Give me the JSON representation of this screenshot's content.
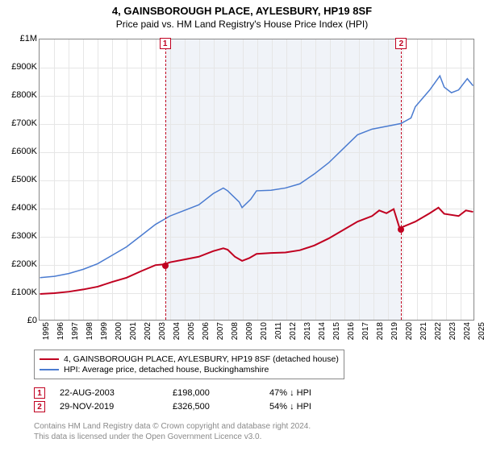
{
  "titles": {
    "line1": "4, GAINSBOROUGH PLACE, AYLESBURY, HP19 8SF",
    "line2": "Price paid vs. HM Land Registry's House Price Index (HPI)"
  },
  "chart": {
    "type": "line",
    "x": {
      "min": 1995,
      "max": 2025,
      "ticks": [
        1995,
        1996,
        1997,
        1998,
        1999,
        2000,
        2001,
        2002,
        2003,
        2004,
        2005,
        2006,
        2007,
        2008,
        2009,
        2010,
        2011,
        2012,
        2013,
        2014,
        2015,
        2016,
        2017,
        2018,
        2019,
        2020,
        2021,
        2022,
        2023,
        2024,
        2025
      ]
    },
    "y": {
      "min": 0,
      "max": 1000000,
      "ticks": [
        0,
        100000,
        200000,
        300000,
        400000,
        500000,
        600000,
        700000,
        800000,
        900000,
        1000000
      ],
      "tick_labels": [
        "£0",
        "£100K",
        "£200K",
        "£300K",
        "£400K",
        "£500K",
        "£600K",
        "£700K",
        "£800K",
        "£900K",
        "£1M"
      ]
    },
    "grid_color": "#e6e6e6",
    "band": {
      "start": 2003.65,
      "end": 2019.91,
      "fill": "#e8ecf4"
    },
    "series": [
      {
        "name": "price_paid",
        "color": "#c00020",
        "width": 2,
        "label": "4, GAINSBOROUGH PLACE, AYLESBURY, HP19 8SF (detached house)",
        "points": [
          [
            1995,
            92000
          ],
          [
            1996,
            95000
          ],
          [
            1997,
            100000
          ],
          [
            1998,
            108000
          ],
          [
            1999,
            118000
          ],
          [
            2000,
            135000
          ],
          [
            2001,
            150000
          ],
          [
            2002,
            173000
          ],
          [
            2003,
            195000
          ],
          [
            2003.65,
            198000
          ],
          [
            2004,
            205000
          ],
          [
            2005,
            215000
          ],
          [
            2006,
            225000
          ],
          [
            2007,
            245000
          ],
          [
            2007.7,
            255000
          ],
          [
            2008,
            250000
          ],
          [
            2008.5,
            225000
          ],
          [
            2009,
            210000
          ],
          [
            2009.5,
            220000
          ],
          [
            2010,
            235000
          ],
          [
            2011,
            238000
          ],
          [
            2012,
            240000
          ],
          [
            2013,
            248000
          ],
          [
            2014,
            265000
          ],
          [
            2015,
            290000
          ],
          [
            2016,
            320000
          ],
          [
            2017,
            350000
          ],
          [
            2018,
            370000
          ],
          [
            2018.5,
            390000
          ],
          [
            2019,
            380000
          ],
          [
            2019.5,
            395000
          ],
          [
            2019.91,
            326500
          ],
          [
            2020.3,
            335000
          ],
          [
            2021,
            350000
          ],
          [
            2022,
            380000
          ],
          [
            2022.6,
            400000
          ],
          [
            2023,
            378000
          ],
          [
            2024,
            370000
          ],
          [
            2024.5,
            390000
          ],
          [
            2025,
            385000
          ]
        ]
      },
      {
        "name": "hpi",
        "color": "#4a7bd0",
        "width": 1.5,
        "label": "HPI: Average price, detached house, Buckinghamshire",
        "points": [
          [
            1995,
            150000
          ],
          [
            1996,
            155000
          ],
          [
            1997,
            165000
          ],
          [
            1998,
            180000
          ],
          [
            1999,
            200000
          ],
          [
            2000,
            230000
          ],
          [
            2001,
            260000
          ],
          [
            2002,
            300000
          ],
          [
            2003,
            340000
          ],
          [
            2004,
            370000
          ],
          [
            2005,
            390000
          ],
          [
            2006,
            410000
          ],
          [
            2007,
            450000
          ],
          [
            2007.7,
            470000
          ],
          [
            2008,
            460000
          ],
          [
            2008.8,
            420000
          ],
          [
            2009,
            400000
          ],
          [
            2009.6,
            430000
          ],
          [
            2010,
            460000
          ],
          [
            2011,
            462000
          ],
          [
            2012,
            470000
          ],
          [
            2013,
            485000
          ],
          [
            2014,
            520000
          ],
          [
            2015,
            560000
          ],
          [
            2016,
            610000
          ],
          [
            2017,
            660000
          ],
          [
            2018,
            680000
          ],
          [
            2019,
            690000
          ],
          [
            2020,
            700000
          ],
          [
            2020.7,
            720000
          ],
          [
            2021,
            760000
          ],
          [
            2022,
            820000
          ],
          [
            2022.7,
            870000
          ],
          [
            2023,
            830000
          ],
          [
            2023.5,
            810000
          ],
          [
            2024,
            820000
          ],
          [
            2024.6,
            860000
          ],
          [
            2025,
            835000
          ]
        ]
      }
    ],
    "sale_markers": [
      {
        "label": "1",
        "year": 2003.65,
        "value": 198000
      },
      {
        "label": "2",
        "year": 2019.91,
        "value": 326500
      }
    ]
  },
  "legend": {
    "items": [
      {
        "color": "#c00020",
        "text": "4, GAINSBOROUGH PLACE, AYLESBURY, HP19 8SF (detached house)"
      },
      {
        "color": "#4a7bd0",
        "text": "HPI: Average price, detached house, Buckinghamshire"
      }
    ]
  },
  "sales": {
    "rows": [
      {
        "num": "1",
        "date": "22-AUG-2003",
        "price": "£198,000",
        "delta": "47% ↓ HPI"
      },
      {
        "num": "2",
        "date": "29-NOV-2019",
        "price": "£326,500",
        "delta": "54% ↓ HPI"
      }
    ]
  },
  "footer": {
    "line1": "Contains HM Land Registry data © Crown copyright and database right 2024.",
    "line2": "This data is licensed under the Open Government Licence v3.0."
  }
}
